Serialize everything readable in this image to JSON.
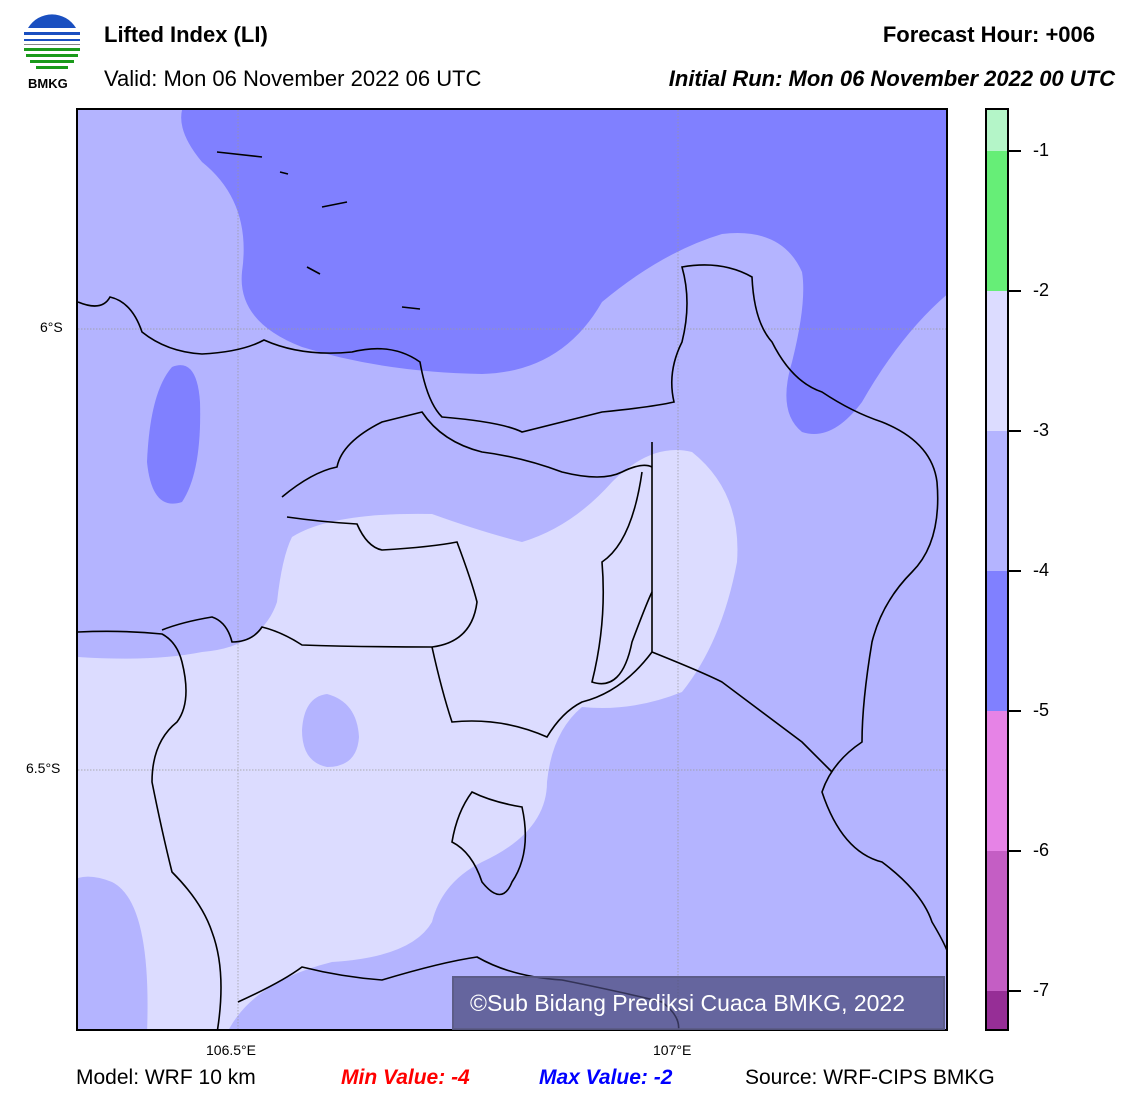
{
  "header": {
    "logo_text": "BMKG",
    "title": "Lifted Index (LI)",
    "valid": "Valid: Mon 06 November 2022 06 UTC",
    "forecast_hour": "Forecast Hour: +006",
    "initial_run": "Initial Run: Mon 06 November 2022 00 UTC"
  },
  "map": {
    "lat_labels": [
      "6°S",
      "6.5°S"
    ],
    "lon_labels": [
      "106.5°E",
      "107°E"
    ],
    "copyright": "©Sub Bidang Prediksi Cuaca BMKG, 2022",
    "colors": {
      "lt_-4": "#8080ff",
      "-4_-3": "#b4b4ff",
      "-3_-2": "#dcdcff"
    }
  },
  "colorbar": {
    "ticks": [
      "-1",
      "-2",
      "-3",
      "-4",
      "-5",
      "-6",
      "-7"
    ],
    "levels": [
      {
        "range": "> -1",
        "color": "#b4f5c8"
      },
      {
        "range": "-2 to -1",
        "color": "#66ee77"
      },
      {
        "range": "-3 to -2",
        "color": "#dcdcff"
      },
      {
        "range": "-4 to -3",
        "color": "#b4b4ff"
      },
      {
        "range": "-5 to -4",
        "color": "#8080ff"
      },
      {
        "range": "-6 to -5",
        "color": "#e683e6"
      },
      {
        "range": "-7 to -6",
        "color": "#c45ec4"
      },
      {
        "range": "< -7",
        "color": "#962e96"
      }
    ]
  },
  "footer": {
    "model": "Model: WRF 10 km",
    "min": "Min Value: -4",
    "max": "Max Value: -2",
    "source": "Source: WRF-CIPS BMKG",
    "min_color": "#ff0000",
    "max_color": "#0000ff"
  }
}
